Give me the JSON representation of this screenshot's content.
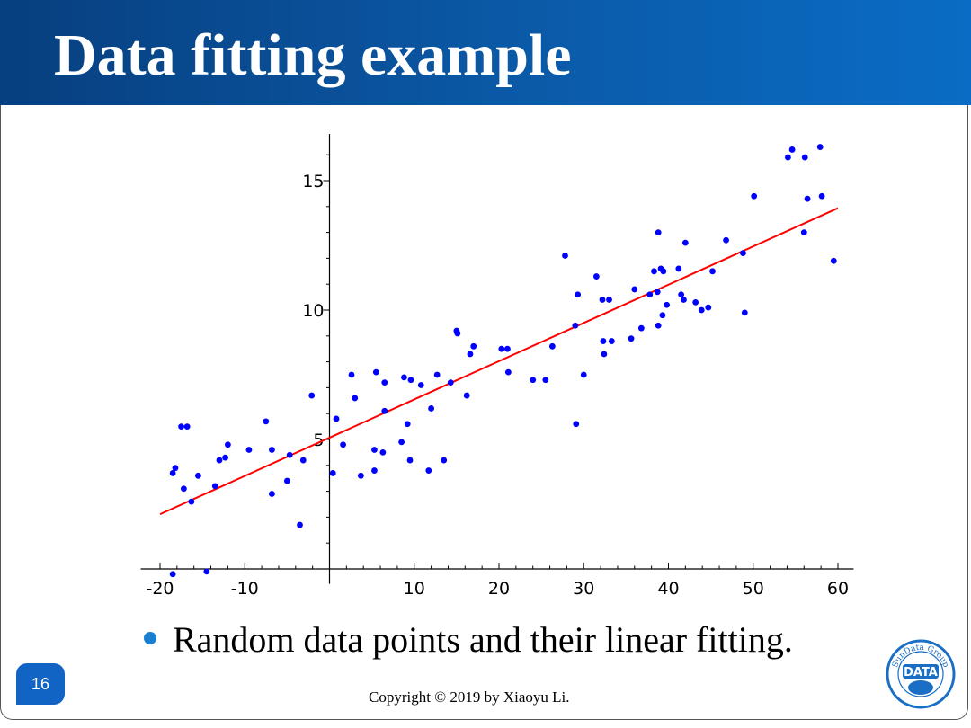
{
  "slide": {
    "title": "Data fitting example",
    "bullet": "Random data points and their linear fitting.",
    "page_number": "16",
    "copyright": "Copyright © 2019 by Xiaoyu Li.",
    "logo": {
      "ring_text": "SunData Group",
      "center_text": "DATA"
    },
    "colors": {
      "title_bar": "#0b5aa8",
      "bullet": "#1a7fd0",
      "page_badge": "#1264c4",
      "points": "#0000ff",
      "fit_line": "#ff0000"
    }
  },
  "chart_data": {
    "type": "scatter",
    "title": "",
    "xlabel": "",
    "ylabel": "",
    "xlim": [
      -21,
      61
    ],
    "ylim": [
      -0.3,
      16.8
    ],
    "xticks": [
      -20,
      -10,
      10,
      20,
      30,
      40,
      50,
      60
    ],
    "yticks": [
      5,
      10,
      15
    ],
    "grid": false,
    "series": [
      {
        "points": [
          [
            -18.5,
            -0.2
          ],
          [
            -18.5,
            3.7
          ],
          [
            -18.2,
            3.9
          ],
          [
            -17.5,
            5.5
          ],
          [
            -16.8,
            5.5
          ],
          [
            -17.2,
            3.1
          ],
          [
            -16.3,
            2.6
          ],
          [
            -15.5,
            3.6
          ],
          [
            -14.5,
            -0.1
          ],
          [
            -13.5,
            3.2
          ],
          [
            -13,
            4.2
          ],
          [
            -12.3,
            4.3
          ],
          [
            -12,
            4.8
          ],
          [
            -9.5,
            4.6
          ],
          [
            -7.5,
            5.7
          ],
          [
            -6.8,
            2.9
          ],
          [
            -6.8,
            4.6
          ],
          [
            -5,
            3.4
          ],
          [
            -4.7,
            4.4
          ],
          [
            -3.5,
            1.7
          ],
          [
            -3.1,
            4.2
          ],
          [
            -2.1,
            6.7
          ],
          [
            0.4,
            3.7
          ],
          [
            0.8,
            5.8
          ],
          [
            1.6,
            4.8
          ],
          [
            2.6,
            7.5
          ],
          [
            3,
            6.6
          ],
          [
            3.7,
            3.6
          ],
          [
            5.3,
            3.8
          ],
          [
            5.3,
            4.6
          ],
          [
            5.5,
            7.6
          ],
          [
            6.3,
            4.5
          ],
          [
            6.5,
            7.2
          ],
          [
            6.5,
            6.1
          ],
          [
            8.5,
            4.9
          ],
          [
            8.8,
            7.4
          ],
          [
            9.2,
            5.6
          ],
          [
            9.6,
            7.3
          ],
          [
            9.5,
            4.2
          ],
          [
            10.8,
            7.1
          ],
          [
            11.7,
            3.8
          ],
          [
            12,
            6.2
          ],
          [
            12.7,
            7.5
          ],
          [
            13.5,
            4.2
          ],
          [
            14.3,
            7.2
          ],
          [
            15,
            9.2
          ],
          [
            15.1,
            9.1
          ],
          [
            16.2,
            6.7
          ],
          [
            16.6,
            8.3
          ],
          [
            17,
            8.6
          ],
          [
            20.3,
            8.5
          ],
          [
            21,
            8.5
          ],
          [
            21.1,
            7.6
          ],
          [
            24,
            7.3
          ],
          [
            25.5,
            7.3
          ],
          [
            26.3,
            8.6
          ],
          [
            27.8,
            12.1
          ],
          [
            29,
            9.4
          ],
          [
            29.1,
            5.6
          ],
          [
            29.3,
            10.6
          ],
          [
            30,
            7.5
          ],
          [
            31.5,
            11.3
          ],
          [
            32.2,
            10.4
          ],
          [
            32.3,
            8.8
          ],
          [
            32.4,
            8.3
          ],
          [
            33,
            10.4
          ],
          [
            33.3,
            8.8
          ],
          [
            35.6,
            8.9
          ],
          [
            36,
            10.8
          ],
          [
            36.8,
            9.3
          ],
          [
            37.8,
            10.6
          ],
          [
            38.3,
            11.5
          ],
          [
            38.7,
            10.7
          ],
          [
            38.8,
            13
          ],
          [
            38.8,
            9.4
          ],
          [
            39.1,
            11.6
          ],
          [
            39.3,
            9.8
          ],
          [
            39.4,
            11.5
          ],
          [
            39.8,
            10.2
          ],
          [
            41.2,
            11.6
          ],
          [
            41.5,
            10.6
          ],
          [
            41.8,
            10.4
          ],
          [
            42,
            12.6
          ],
          [
            43.2,
            10.3
          ],
          [
            43.9,
            10
          ],
          [
            44.7,
            10.1
          ],
          [
            45.2,
            11.5
          ],
          [
            46.8,
            12.7
          ],
          [
            48.8,
            12.2
          ],
          [
            49,
            9.9
          ],
          [
            50.1,
            14.4
          ],
          [
            54.1,
            15.9
          ],
          [
            54.6,
            16.2
          ],
          [
            56.1,
            15.9
          ],
          [
            56,
            13
          ],
          [
            56.4,
            14.3
          ],
          [
            57.9,
            16.3
          ],
          [
            58.1,
            14.4
          ],
          [
            59.5,
            11.9
          ]
        ]
      },
      {
        "type": "line",
        "fit": {
          "slope": 0.1478,
          "intercept": 5.07
        },
        "x_range": [
          -20,
          60
        ]
      }
    ]
  }
}
